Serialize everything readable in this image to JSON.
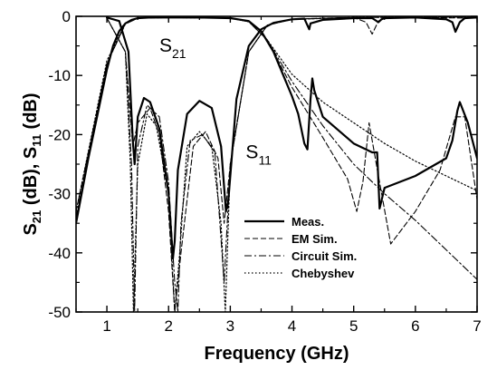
{
  "chart_data": {
    "type": "line",
    "title": "",
    "xlabel": "Frequency (GHz)",
    "ylabel_parts": [
      "S",
      "21",
      " (dB), S",
      "11",
      " (dB)"
    ],
    "xlim": [
      0.5,
      7
    ],
    "ylim": [
      -50,
      0
    ],
    "xticks": [
      1,
      2,
      3,
      4,
      5,
      6,
      7
    ],
    "yticks": [
      0,
      -10,
      -20,
      -30,
      -40,
      -50
    ],
    "grid": false,
    "legend_position": "lower-right",
    "annotations": [
      {
        "main": "S",
        "sub": "21",
        "x": 1.85,
        "y": -6.0
      },
      {
        "main": "S",
        "sub": "11",
        "x": 3.25,
        "y": -24.0
      }
    ],
    "series": [
      {
        "name": "Meas.",
        "style": "solid",
        "s21": {
          "x": [
            0.5,
            0.7,
            0.9,
            1.0,
            1.1,
            1.2,
            1.3,
            1.4,
            1.5,
            1.7,
            2.0,
            2.5,
            3.0,
            3.3,
            3.5,
            3.7,
            3.9,
            4.0,
            4.1,
            4.2,
            4.25,
            4.3,
            4.33,
            4.36,
            4.5,
            5.0,
            5.3,
            5.38,
            5.42,
            5.5,
            6.0,
            6.5,
            6.6,
            6.68,
            6.72,
            6.85,
            7.0
          ],
          "y": [
            -35,
            -24,
            -14,
            -9,
            -5,
            -2.5,
            -1.2,
            -0.6,
            -0.3,
            -0.2,
            -0.2,
            -0.2,
            -0.3,
            -0.8,
            -2.5,
            -6,
            -11,
            -13.5,
            -16.5,
            -21.5,
            -22.5,
            -14,
            -10.5,
            -12.5,
            -17,
            -21.5,
            -23,
            -23,
            -32.5,
            -29,
            -27,
            -24,
            -21,
            -16,
            -14.5,
            -18,
            -24
          ]
        },
        "s11": {
          "x": [
            1.0,
            1.2,
            1.35,
            1.42,
            1.45,
            1.5,
            1.6,
            1.7,
            1.85,
            2.0,
            2.07,
            2.1,
            2.15,
            2.3,
            2.5,
            2.7,
            2.85,
            2.93,
            2.97,
            3.1,
            3.3,
            3.5,
            3.7,
            4.0,
            4.2,
            4.28,
            4.3,
            4.5,
            5.0,
            5.3,
            5.4,
            5.45,
            5.5,
            6.0,
            6.5,
            6.6,
            6.65,
            6.72,
            6.8,
            7.0
          ],
          "y": [
            -0.2,
            -0.8,
            -6,
            -21,
            -25,
            -17,
            -13.8,
            -14.5,
            -19,
            -30,
            -41,
            -38,
            -26,
            -16.5,
            -14.3,
            -15.5,
            -22,
            -33,
            -31,
            -14,
            -5,
            -2.2,
            -1.1,
            -0.5,
            -0.4,
            -2.2,
            -1.2,
            -0.6,
            -0.3,
            -0.3,
            -1,
            -0.5,
            -0.3,
            -0.2,
            -0.5,
            -1,
            -2.6,
            -1,
            -0.3,
            -0.2
          ]
        }
      },
      {
        "name": "EM Sim.",
        "style": "dashed",
        "s21": {
          "x": [
            0.5,
            1.0,
            1.3,
            1.5,
            2.0,
            3.0,
            3.3,
            3.6,
            4.0,
            4.5,
            4.9,
            5.05,
            5.15,
            5.25,
            5.4,
            5.6,
            6.0,
            6.4,
            6.65,
            6.8,
            7.0
          ],
          "y": [
            -33,
            -8,
            -1.2,
            -0.3,
            -0.2,
            -0.3,
            -0.9,
            -4,
            -12,
            -20.5,
            -27.5,
            -33,
            -28,
            -18,
            -27,
            -38.5,
            -33,
            -26,
            -17,
            -17,
            -31
          ]
        },
        "s11": {
          "x": [
            1.0,
            1.3,
            1.42,
            1.5,
            1.7,
            1.85,
            2.0,
            2.1,
            2.2,
            2.4,
            2.6,
            2.8,
            2.9,
            3.0,
            3.3,
            3.6,
            4.0,
            4.5,
            5.0,
            5.2,
            5.3,
            5.4,
            5.5,
            6.0,
            7.0
          ],
          "y": [
            -0.3,
            -6,
            -22,
            -18,
            -15.5,
            -20,
            -33,
            -50,
            -40,
            -22,
            -19.5,
            -24,
            -35,
            -25,
            -6,
            -1.5,
            -0.5,
            -0.3,
            -0.2,
            -1,
            -3,
            -0.8,
            -0.3,
            -0.2,
            -0.3
          ]
        }
      },
      {
        "name": "Circuit Sim.",
        "style": "dash-dot",
        "s21": {
          "x": [
            0.5,
            1.0,
            1.3,
            1.5,
            2.0,
            3.0,
            3.3,
            3.6,
            4.0,
            4.5,
            5.0,
            5.5,
            6.0,
            6.5,
            7.0
          ],
          "y": [
            -34,
            -8,
            -1.3,
            -0.3,
            -0.2,
            -0.3,
            -0.9,
            -4,
            -11,
            -18.5,
            -25,
            -30,
            -34.5,
            -39.5,
            -44.5
          ]
        },
        "s11": {
          "x": [
            1.0,
            1.3,
            1.4,
            1.45,
            1.5,
            1.65,
            1.85,
            2.0,
            2.1,
            2.15,
            2.2,
            2.35,
            2.55,
            2.75,
            2.9,
            3.0,
            3.3,
            3.6,
            4.0,
            5.0,
            7.0
          ],
          "y": [
            -0.3,
            -6,
            -25,
            -50,
            -22,
            -15,
            -17,
            -28,
            -45,
            -50,
            -35,
            -21,
            -20,
            -23,
            -45,
            -25,
            -6,
            -1.5,
            -0.5,
            -0.2,
            -0.1
          ]
        }
      },
      {
        "name": "Chebyshev",
        "style": "dotted",
        "s21": {
          "x": [
            0.5,
            1.0,
            1.3,
            1.5,
            2.0,
            3.0,
            3.3,
            3.6,
            4.0,
            4.5,
            5.0,
            5.5,
            6.0,
            6.5,
            7.0
          ],
          "y": [
            -33,
            -7.5,
            -1.2,
            -0.3,
            -0.2,
            -0.3,
            -0.9,
            -4,
            -9.8,
            -14.5,
            -18,
            -21.5,
            -24.5,
            -27,
            -29.5
          ]
        },
        "s11": {
          "x": [
            1.0,
            1.3,
            1.38,
            1.43,
            1.5,
            1.65,
            1.8,
            2.0,
            2.1,
            2.18,
            2.3,
            2.5,
            2.7,
            2.85,
            2.92,
            3.0,
            3.3,
            3.6,
            4.0,
            5.0,
            7.0
          ],
          "y": [
            -0.3,
            -6,
            -25,
            -50,
            -25,
            -16.5,
            -18.5,
            -30,
            -50,
            -40,
            -22,
            -19.5,
            -22,
            -35,
            -50,
            -25,
            -6,
            -1.5,
            -0.5,
            -0.2,
            -0.1
          ]
        }
      }
    ]
  }
}
